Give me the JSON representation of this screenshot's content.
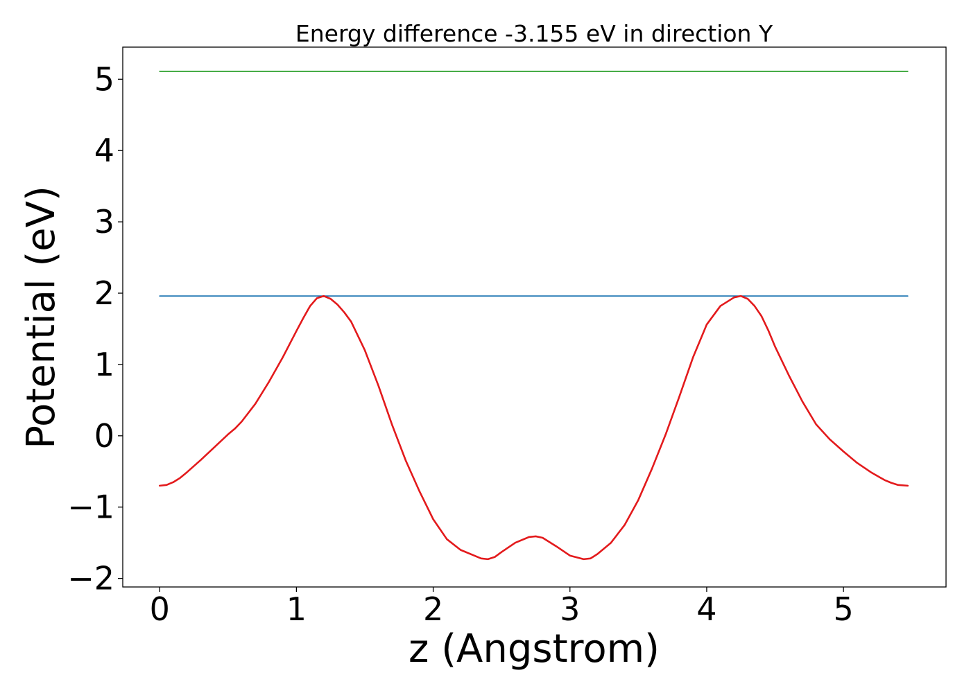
{
  "chart_data": {
    "type": "line",
    "title": "Energy difference -3.155 eV in direction Y",
    "xlabel": "z (Angstrom)",
    "ylabel": "Potential (eV)",
    "xlim": [
      -0.27,
      5.75
    ],
    "ylim": [
      -2.12,
      5.45
    ],
    "grid": false,
    "xticks": [
      0,
      1,
      2,
      3,
      4,
      5
    ],
    "xtick_labels": [
      "0",
      "1",
      "2",
      "3",
      "4",
      "5"
    ],
    "yticks": [
      -2,
      -1,
      0,
      1,
      2,
      3,
      4,
      5
    ],
    "ytick_labels": [
      "−2",
      "−1",
      "0",
      "1",
      "2",
      "3",
      "4",
      "5"
    ],
    "series": [
      {
        "color": "#2ca02c",
        "x": [
          0,
          5.47
        ],
        "y": [
          5.11,
          5.11
        ]
      },
      {
        "color": "#1f77b4",
        "x": [
          0,
          5.47
        ],
        "y": [
          1.96,
          1.96
        ]
      },
      {
        "color": "#e31a1c",
        "x": [
          0,
          0.05,
          0.1,
          0.15,
          0.2,
          0.3,
          0.4,
          0.5,
          0.55,
          0.6,
          0.7,
          0.8,
          0.9,
          1.0,
          1.05,
          1.1,
          1.15,
          1.2,
          1.25,
          1.3,
          1.35,
          1.4,
          1.5,
          1.6,
          1.7,
          1.8,
          1.9,
          2.0,
          2.1,
          2.2,
          2.3,
          2.35,
          2.4,
          2.45,
          2.5,
          2.6,
          2.7,
          2.75,
          2.8,
          2.9,
          3.0,
          3.1,
          3.15,
          3.2,
          3.3,
          3.4,
          3.5,
          3.6,
          3.7,
          3.8,
          3.9,
          4.0,
          4.1,
          4.2,
          4.25,
          4.3,
          4.35,
          4.4,
          4.45,
          4.5,
          4.6,
          4.7,
          4.8,
          4.9,
          5.0,
          5.1,
          5.2,
          5.3,
          5.35,
          5.4,
          5.47
        ],
        "y": [
          -0.7,
          -0.69,
          -0.65,
          -0.59,
          -0.51,
          -0.34,
          -0.16,
          0.02,
          0.1,
          0.2,
          0.45,
          0.76,
          1.1,
          1.47,
          1.65,
          1.82,
          1.93,
          1.96,
          1.92,
          1.84,
          1.73,
          1.6,
          1.2,
          0.7,
          0.15,
          -0.35,
          -0.78,
          -1.17,
          -1.45,
          -1.6,
          -1.68,
          -1.72,
          -1.73,
          -1.7,
          -1.63,
          -1.5,
          -1.42,
          -1.41,
          -1.43,
          -1.55,
          -1.68,
          -1.73,
          -1.72,
          -1.66,
          -1.5,
          -1.25,
          -0.9,
          -0.46,
          0.02,
          0.55,
          1.1,
          1.56,
          1.82,
          1.94,
          1.96,
          1.92,
          1.82,
          1.68,
          1.48,
          1.25,
          0.85,
          0.48,
          0.16,
          -0.05,
          -0.22,
          -0.38,
          -0.51,
          -0.62,
          -0.66,
          -0.69,
          -0.7
        ]
      }
    ]
  }
}
